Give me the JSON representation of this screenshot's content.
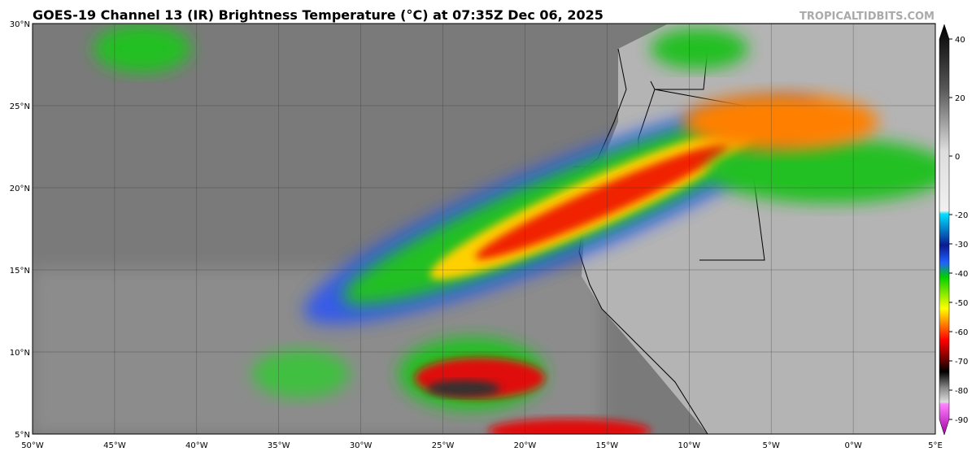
{
  "header": {
    "title": "GOES-19 Channel 13 (IR) Brightness Temperature (°C) at 07:35Z Dec 06, 2025",
    "watermark": "TROPICALTIDBITS.COM"
  },
  "map": {
    "lat_labels": [
      "30°N",
      "25°N",
      "20°N",
      "15°N",
      "10°N",
      "5°N"
    ],
    "lon_labels": [
      "50°W",
      "45°W",
      "40°W",
      "35°W",
      "30°W",
      "25°W",
      "20°W",
      "15°W",
      "10°W",
      "5°W",
      "0°W",
      "5°E"
    ]
  },
  "colorbar": {
    "ticks": [
      40,
      20,
      0,
      -20,
      -30,
      -40,
      -50,
      -60,
      -70,
      -80,
      -90
    ]
  }
}
